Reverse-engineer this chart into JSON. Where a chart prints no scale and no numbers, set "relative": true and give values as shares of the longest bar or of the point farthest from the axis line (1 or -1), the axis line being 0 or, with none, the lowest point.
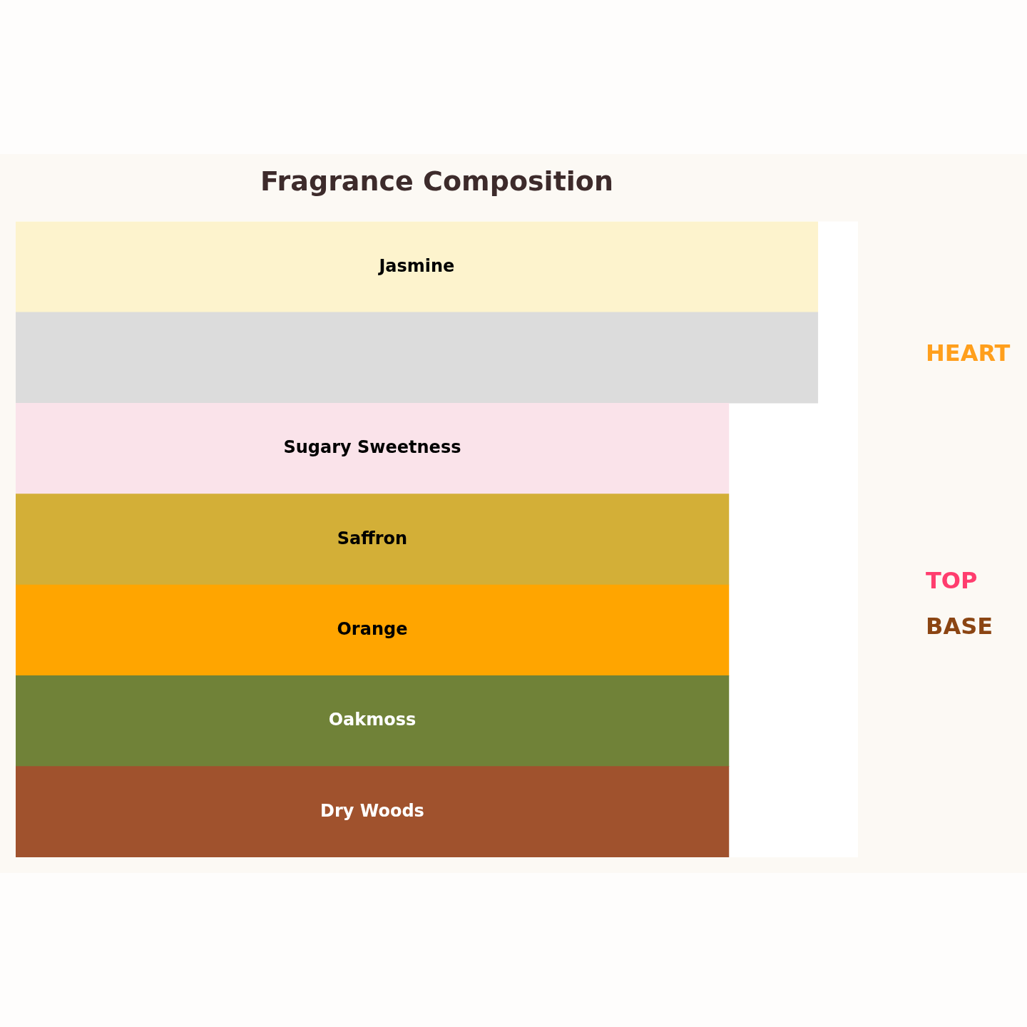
{
  "chart_data": {
    "type": "bar",
    "orientation": "horizontal",
    "relative": true,
    "title": "Fragrance Composition",
    "categories": [
      "Jasmine",
      null,
      "Sugary Sweetness",
      "Saffron",
      "Orange",
      "Oakmoss",
      "Dry Woods"
    ],
    "values": [
      1,
      1,
      0.889,
      0.889,
      0.889,
      0.889,
      0.889
    ],
    "colors": [
      "#fdf3cd",
      "#dcdcdc",
      "#fae3ea",
      "#d3af37",
      "#ffa500",
      "#708238",
      "#a0522d"
    ],
    "annotations": [
      "HEART",
      "TOP",
      "BASE"
    ],
    "legend": false,
    "tick_labels": false
  }
}
